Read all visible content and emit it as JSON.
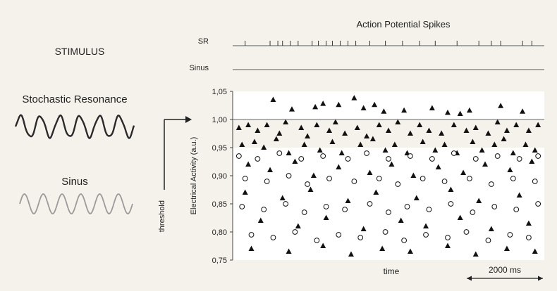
{
  "title": "Action Potential Spikes",
  "left_panel": {
    "heading": "STIMULUS",
    "stochastic_label": "Stochastic Resonance",
    "sinus_label": "Sinus"
  },
  "spike_rows": [
    {
      "label": "SR",
      "spike_times": [
        0.04,
        0.12,
        0.145,
        0.16,
        0.185,
        0.21,
        0.255,
        0.275,
        0.3,
        0.32,
        0.345,
        0.37,
        0.395,
        0.44,
        0.49,
        0.545,
        0.6,
        0.65,
        0.72,
        0.79,
        0.83,
        0.86,
        0.93,
        0.96
      ]
    },
    {
      "label": "Sinus",
      "spike_times": []
    }
  ],
  "threshold_label": "threshold",
  "scale_bar_label": "2000 ms",
  "colors": {
    "background": "#f4f2ea",
    "plot_background": "#ffffff",
    "marker": "#111111",
    "stochastic_wave": "#2a2a2a",
    "sinus_wave": "#9a9a9a"
  },
  "chart_data": {
    "type": "scatter",
    "title": "",
    "xlabel": "time",
    "ylabel": "Electrical Activity (a.u.)",
    "ylim": [
      0.75,
      1.05
    ],
    "y_ticks": [
      "0,75",
      "0,80",
      "0,85",
      "0,90",
      "0,95",
      "1,00",
      "1,05"
    ],
    "threshold": 1.0,
    "grid": false,
    "marker_shapes": [
      "triangle",
      "circle"
    ],
    "series": [
      {
        "marker": "triangle",
        "points": [
          [
            0.13,
            1.035
          ],
          [
            0.19,
            1.018
          ],
          [
            0.265,
            1.022
          ],
          [
            0.29,
            1.028
          ],
          [
            0.34,
            1.026
          ],
          [
            0.39,
            1.038
          ],
          [
            0.42,
            1.02
          ],
          [
            0.455,
            1.026
          ],
          [
            0.485,
            1.014
          ],
          [
            0.55,
            1.016
          ],
          [
            0.64,
            1.02
          ],
          [
            0.69,
            1.012
          ],
          [
            0.73,
            1.01
          ],
          [
            0.76,
            1.016
          ],
          [
            0.86,
            1.024
          ],
          [
            0.93,
            1.014
          ],
          [
            0.02,
            0.985
          ],
          [
            0.05,
            0.99
          ],
          [
            0.08,
            0.98
          ],
          [
            0.11,
            0.99
          ],
          [
            0.15,
            0.975
          ],
          [
            0.17,
            0.995
          ],
          [
            0.22,
            0.985
          ],
          [
            0.24,
            0.97
          ],
          [
            0.27,
            0.99
          ],
          [
            0.31,
            0.98
          ],
          [
            0.33,
            0.995
          ],
          [
            0.36,
            0.975
          ],
          [
            0.4,
            0.985
          ],
          [
            0.43,
            0.97
          ],
          [
            0.47,
            0.99
          ],
          [
            0.5,
            0.98
          ],
          [
            0.53,
            0.995
          ],
          [
            0.57,
            0.975
          ],
          [
            0.6,
            0.99
          ],
          [
            0.63,
            0.98
          ],
          [
            0.67,
            0.975
          ],
          [
            0.71,
            0.99
          ],
          [
            0.75,
            0.98
          ],
          [
            0.78,
            0.985
          ],
          [
            0.82,
            0.975
          ],
          [
            0.85,
            0.995
          ],
          [
            0.88,
            0.98
          ],
          [
            0.91,
            0.99
          ],
          [
            0.95,
            0.98
          ],
          [
            0.98,
            0.99
          ],
          [
            0.03,
            0.955
          ],
          [
            0.07,
            0.96
          ],
          [
            0.1,
            0.95
          ],
          [
            0.14,
            0.965
          ],
          [
            0.18,
            0.94
          ],
          [
            0.23,
            0.955
          ],
          [
            0.28,
            0.945
          ],
          [
            0.32,
            0.96
          ],
          [
            0.35,
            0.94
          ],
          [
            0.41,
            0.955
          ],
          [
            0.45,
            0.965
          ],
          [
            0.49,
            0.945
          ],
          [
            0.52,
            0.955
          ],
          [
            0.56,
            0.94
          ],
          [
            0.61,
            0.96
          ],
          [
            0.65,
            0.945
          ],
          [
            0.68,
            0.955
          ],
          [
            0.72,
            0.94
          ],
          [
            0.77,
            0.96
          ],
          [
            0.8,
            0.945
          ],
          [
            0.84,
            0.955
          ],
          [
            0.87,
            0.965
          ],
          [
            0.9,
            0.94
          ],
          [
            0.94,
            0.955
          ],
          [
            0.97,
            0.945
          ],
          [
            0.05,
            0.92
          ],
          [
            0.12,
            0.91
          ],
          [
            0.2,
            0.925
          ],
          [
            0.26,
            0.9
          ],
          [
            0.34,
            0.915
          ],
          [
            0.44,
            0.905
          ],
          [
            0.51,
            0.92
          ],
          [
            0.58,
            0.9
          ],
          [
            0.66,
            0.915
          ],
          [
            0.74,
            0.905
          ],
          [
            0.81,
            0.92
          ],
          [
            0.89,
            0.91
          ],
          [
            0.96,
            0.925
          ],
          [
            0.04,
            0.87
          ],
          [
            0.16,
            0.86
          ],
          [
            0.25,
            0.875
          ],
          [
            0.37,
            0.855
          ],
          [
            0.46,
            0.87
          ],
          [
            0.59,
            0.86
          ],
          [
            0.7,
            0.875
          ],
          [
            0.79,
            0.855
          ],
          [
            0.92,
            0.865
          ],
          [
            0.09,
            0.82
          ],
          [
            0.21,
            0.81
          ],
          [
            0.3,
            0.825
          ],
          [
            0.42,
            0.805
          ],
          [
            0.54,
            0.82
          ],
          [
            0.62,
            0.81
          ],
          [
            0.73,
            0.825
          ],
          [
            0.83,
            0.805
          ],
          [
            0.95,
            0.815
          ],
          [
            0.06,
            0.77
          ],
          [
            0.18,
            0.765
          ],
          [
            0.29,
            0.775
          ],
          [
            0.38,
            0.76
          ],
          [
            0.48,
            0.77
          ],
          [
            0.57,
            0.765
          ],
          [
            0.69,
            0.775
          ],
          [
            0.78,
            0.76
          ],
          [
            0.88,
            0.77
          ],
          [
            0.97,
            0.765
          ]
        ]
      },
      {
        "marker": "circle",
        "points": [
          [
            0.02,
            0.935
          ],
          [
            0.08,
            0.93
          ],
          [
            0.15,
            0.94
          ],
          [
            0.22,
            0.93
          ],
          [
            0.29,
            0.935
          ],
          [
            0.37,
            0.93
          ],
          [
            0.43,
            0.94
          ],
          [
            0.5,
            0.93
          ],
          [
            0.57,
            0.935
          ],
          [
            0.64,
            0.93
          ],
          [
            0.71,
            0.94
          ],
          [
            0.78,
            0.93
          ],
          [
            0.85,
            0.935
          ],
          [
            0.92,
            0.93
          ],
          [
            0.98,
            0.935
          ],
          [
            0.04,
            0.895
          ],
          [
            0.11,
            0.89
          ],
          [
            0.18,
            0.9
          ],
          [
            0.24,
            0.885
          ],
          [
            0.31,
            0.895
          ],
          [
            0.39,
            0.89
          ],
          [
            0.47,
            0.895
          ],
          [
            0.53,
            0.885
          ],
          [
            0.61,
            0.895
          ],
          [
            0.68,
            0.89
          ],
          [
            0.76,
            0.895
          ],
          [
            0.83,
            0.885
          ],
          [
            0.9,
            0.895
          ],
          [
            0.97,
            0.89
          ],
          [
            0.03,
            0.845
          ],
          [
            0.1,
            0.84
          ],
          [
            0.17,
            0.85
          ],
          [
            0.23,
            0.835
          ],
          [
            0.3,
            0.845
          ],
          [
            0.36,
            0.84
          ],
          [
            0.44,
            0.85
          ],
          [
            0.5,
            0.835
          ],
          [
            0.56,
            0.845
          ],
          [
            0.63,
            0.84
          ],
          [
            0.7,
            0.85
          ],
          [
            0.77,
            0.835
          ],
          [
            0.84,
            0.845
          ],
          [
            0.91,
            0.84
          ],
          [
            0.98,
            0.85
          ],
          [
            0.06,
            0.795
          ],
          [
            0.13,
            0.79
          ],
          [
            0.2,
            0.8
          ],
          [
            0.27,
            0.785
          ],
          [
            0.34,
            0.795
          ],
          [
            0.41,
            0.79
          ],
          [
            0.49,
            0.8
          ],
          [
            0.55,
            0.785
          ],
          [
            0.62,
            0.795
          ],
          [
            0.69,
            0.79
          ],
          [
            0.75,
            0.8
          ],
          [
            0.82,
            0.785
          ],
          [
            0.89,
            0.795
          ],
          [
            0.95,
            0.79
          ]
        ]
      }
    ]
  }
}
